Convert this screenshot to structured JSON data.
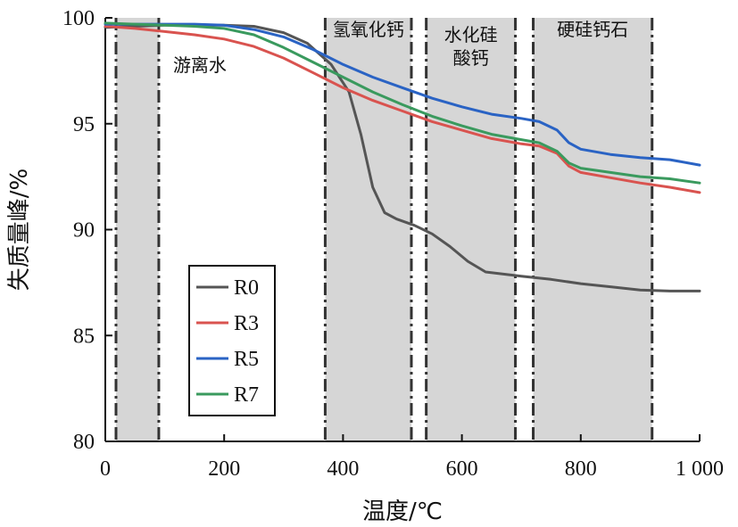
{
  "chart_data": {
    "type": "line",
    "xlabel": "温度/℃",
    "ylabel": "失质量峰/%",
    "xlim": [
      0,
      1000
    ],
    "ylim": [
      80,
      100
    ],
    "xticks": [
      0,
      200,
      400,
      600,
      800,
      1000
    ],
    "xtick_labels": [
      "0",
      "200",
      "400",
      "600",
      "800",
      "1 000"
    ],
    "yticks": [
      80,
      85,
      90,
      95,
      100
    ],
    "ytick_labels": [
      "80",
      "85",
      "90",
      "95",
      "100"
    ],
    "grid": false,
    "legend_position": "lower-left",
    "regions": [
      {
        "label_lines": [
          "游离水"
        ],
        "x_start": 18,
        "x_end": 90
      },
      {
        "label_lines": [
          "氢氧化钙"
        ],
        "x_start": 370,
        "x_end": 515
      },
      {
        "label_lines": [
          "水化硅",
          "酸钙"
        ],
        "x_start": 540,
        "x_end": 690
      },
      {
        "label_lines": [
          "硬硅钙石"
        ],
        "x_start": 720,
        "x_end": 920
      }
    ],
    "series": [
      {
        "name": "R0",
        "color": "#555555",
        "x": [
          0,
          50,
          100,
          150,
          200,
          250,
          300,
          340,
          380,
          410,
          430,
          450,
          470,
          490,
          520,
          550,
          580,
          610,
          640,
          670,
          700,
          750,
          800,
          850,
          900,
          950,
          1000
        ],
        "y": [
          99.55,
          99.6,
          99.65,
          99.65,
          99.65,
          99.6,
          99.3,
          98.8,
          97.8,
          96.5,
          94.5,
          92.0,
          90.8,
          90.5,
          90.2,
          89.8,
          89.2,
          88.5,
          88.0,
          87.9,
          87.8,
          87.65,
          87.45,
          87.3,
          87.15,
          87.1,
          87.1
        ]
      },
      {
        "name": "R3",
        "color": "#d9534f",
        "x": [
          0,
          50,
          100,
          150,
          200,
          250,
          300,
          350,
          400,
          450,
          500,
          550,
          600,
          650,
          700,
          730,
          760,
          780,
          800,
          850,
          900,
          950,
          1000
        ],
        "y": [
          99.6,
          99.5,
          99.35,
          99.2,
          99.0,
          98.65,
          98.1,
          97.4,
          96.7,
          96.1,
          95.6,
          95.1,
          94.7,
          94.3,
          94.05,
          93.95,
          93.6,
          93.0,
          92.7,
          92.45,
          92.2,
          92.0,
          91.75
        ]
      },
      {
        "name": "R5",
        "color": "#2a63c4",
        "x": [
          0,
          50,
          100,
          150,
          200,
          250,
          300,
          350,
          400,
          450,
          500,
          550,
          600,
          650,
          700,
          730,
          760,
          780,
          800,
          850,
          900,
          950,
          1000
        ],
        "y": [
          99.7,
          99.7,
          99.7,
          99.7,
          99.65,
          99.45,
          99.1,
          98.5,
          97.8,
          97.2,
          96.7,
          96.2,
          95.8,
          95.45,
          95.25,
          95.1,
          94.7,
          94.1,
          93.8,
          93.55,
          93.4,
          93.3,
          93.05
        ]
      },
      {
        "name": "R7",
        "color": "#3a9a5e",
        "x": [
          0,
          50,
          100,
          150,
          200,
          250,
          300,
          350,
          400,
          450,
          500,
          550,
          600,
          650,
          700,
          730,
          760,
          780,
          800,
          850,
          900,
          950,
          1000
        ],
        "y": [
          99.75,
          99.7,
          99.65,
          99.6,
          99.5,
          99.2,
          98.6,
          97.9,
          97.2,
          96.5,
          95.9,
          95.35,
          94.9,
          94.5,
          94.25,
          94.1,
          93.7,
          93.15,
          92.9,
          92.7,
          92.5,
          92.4,
          92.2
        ]
      }
    ]
  }
}
